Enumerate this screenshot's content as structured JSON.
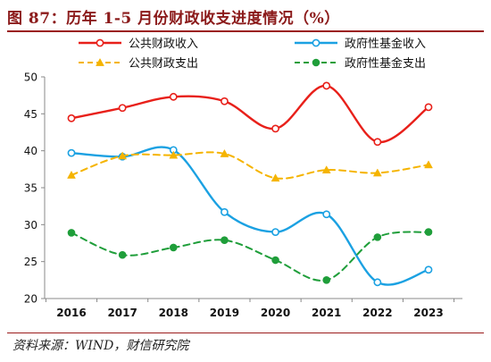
{
  "title": "图 87：历年 1-5 月份财政收支进度情况（%）",
  "source": "资料来源：WIND，财信研究院",
  "chart_data": {
    "type": "line",
    "x": [
      "2016",
      "2017",
      "2018",
      "2019",
      "2020",
      "2021",
      "2022",
      "2023"
    ],
    "ylim": [
      20,
      50
    ],
    "yticks": [
      20,
      25,
      30,
      35,
      40,
      45,
      50
    ],
    "grid": false,
    "legend_position": "top",
    "series": [
      {
        "name": "公共财政收入",
        "values": [
          44.4,
          45.8,
          47.3,
          46.7,
          43.0,
          48.8,
          41.2,
          45.9
        ],
        "color": "#e8201a",
        "style": "solid",
        "marker": "open-circle"
      },
      {
        "name": "政府性基金收入",
        "values": [
          39.7,
          39.2,
          40.1,
          31.7,
          29.0,
          31.4,
          22.2,
          23.9
        ],
        "color": "#1ba1e2",
        "style": "solid",
        "marker": "open-circle"
      },
      {
        "name": "公共财政支出",
        "values": [
          36.7,
          39.3,
          39.4,
          39.6,
          36.3,
          37.4,
          37.0,
          38.1
        ],
        "color": "#f5b400",
        "style": "dashed",
        "marker": "triangle"
      },
      {
        "name": "政府性基金支出",
        "values": [
          28.9,
          25.9,
          26.9,
          27.9,
          25.2,
          22.5,
          28.3,
          29.0
        ],
        "color": "#1f9e3a",
        "style": "dashed",
        "marker": "filled-circle"
      }
    ]
  }
}
